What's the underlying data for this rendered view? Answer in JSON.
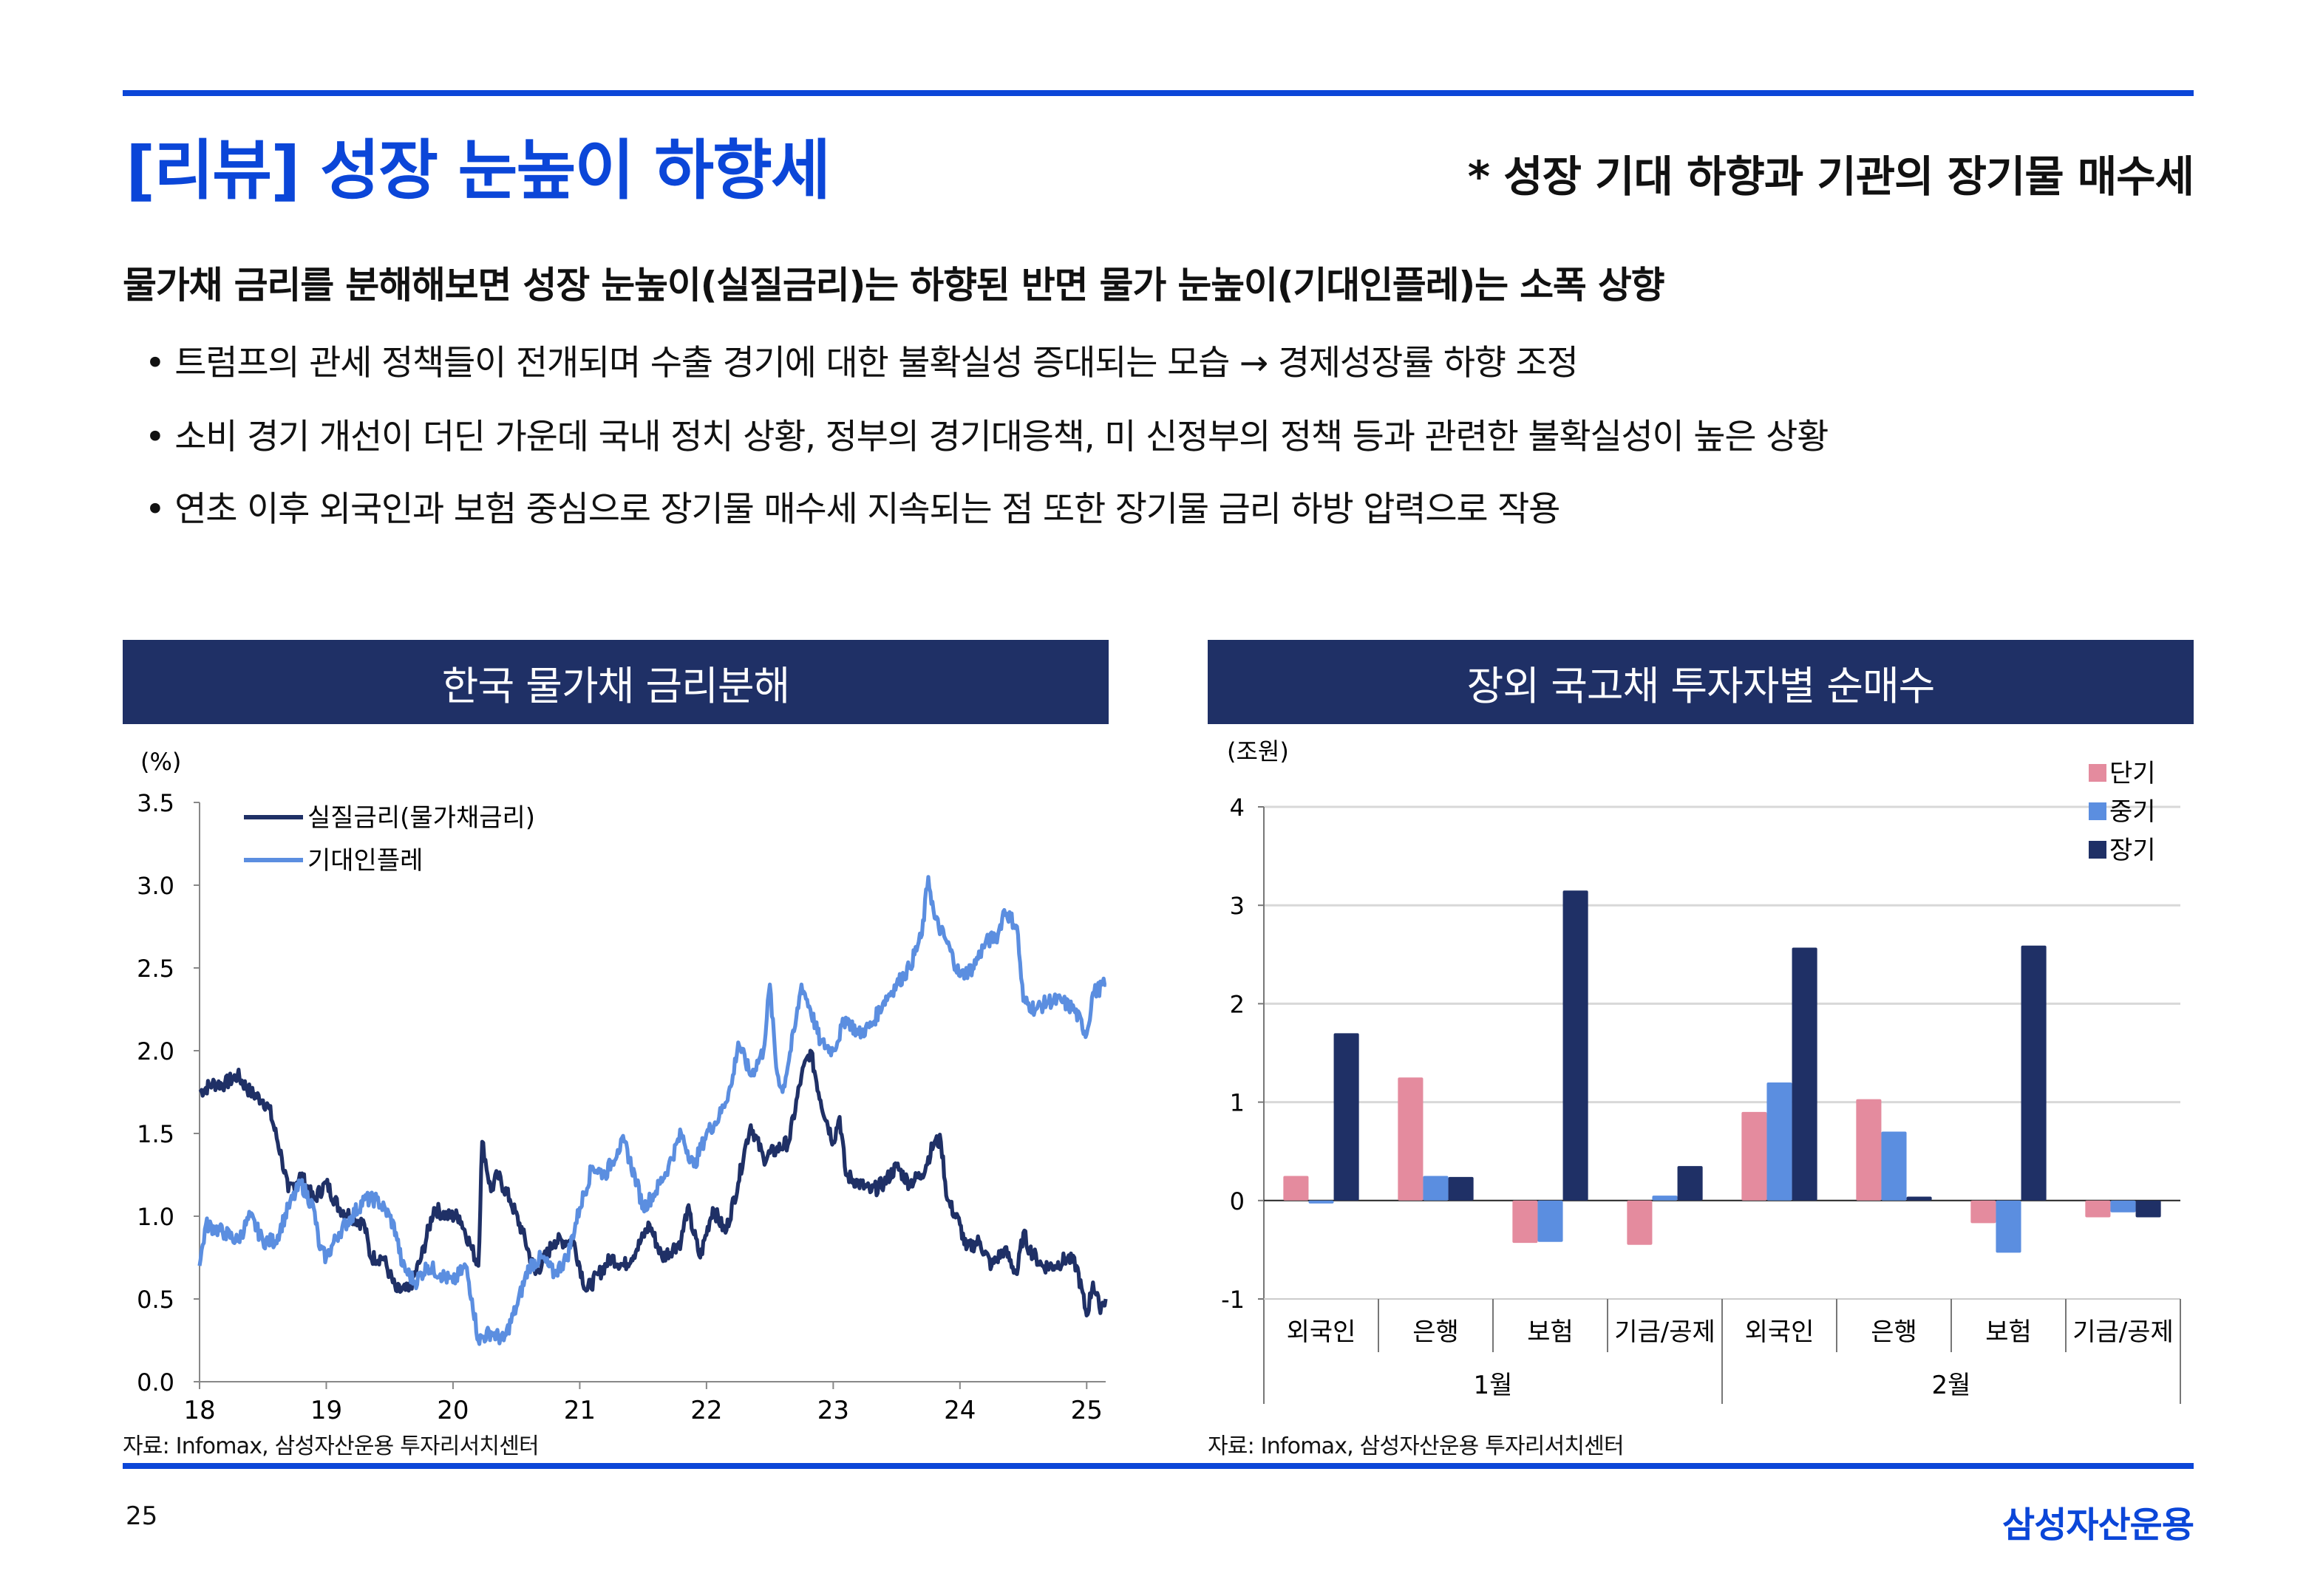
{
  "header": {
    "title": "[리뷰] 성장 눈높이 하향세",
    "subtitle": "* 성장 기대 하향과 기관의 장기물 매수세"
  },
  "body": {
    "headline": "물가채 금리를 분해해보면 성장 눈높이(실질금리)는 하향된 반면 물가 눈높이(기대인플레)는 소폭 상향",
    "bullets": [
      "• 트럼프의 관세 정책들이 전개되며 수출 경기에 대한 불확실성 증대되는 모습 → 경제성장률 하향 조정",
      "• 소비 경기 개선이 더딘 가운데 국내 정치 상황, 정부의 경기대응책, 미 신정부의 정책 등과 관련한 불확실성이 높은 상황",
      "• 연초 이후 외국인과 보험 중심으로 장기물 매수세 지속되는 점 또한 장기물 금리 하방 압력으로 작용"
    ]
  },
  "colors": {
    "brand": "#0b46d8",
    "header_bg": "#1f3066",
    "dark_series": "#1f3066",
    "light_series": "#5b8ee0",
    "short": "#e48b9e",
    "mid": "#5b8ee0",
    "long": "#1f3066"
  },
  "chart_data": [
    {
      "type": "line",
      "title": "한국 물가채 금리분해",
      "ylabel": "(%)",
      "ylim": [
        0,
        3.5
      ],
      "yticks": [
        "0.0",
        "0.5",
        "1.0",
        "1.5",
        "2.0",
        "2.5",
        "3.0",
        "3.5"
      ],
      "xticks": [
        "18",
        "19",
        "20",
        "21",
        "22",
        "23",
        "24",
        "25"
      ],
      "xlim": [
        2018,
        2025.15
      ],
      "legend": "top-left",
      "source": "자료: Infomax, 삼성자산운용 투자리서치센터",
      "series": [
        {
          "name": "실질금리(물가채금리)",
          "points": [
            [
              2018.0,
              1.75
            ],
            [
              2018.1,
              1.8
            ],
            [
              2018.2,
              1.8
            ],
            [
              2018.3,
              1.85
            ],
            [
              2018.4,
              1.75
            ],
            [
              2018.5,
              1.7
            ],
            [
              2018.55,
              1.65
            ],
            [
              2018.65,
              1.35
            ],
            [
              2018.7,
              1.15
            ],
            [
              2018.8,
              1.25
            ],
            [
              2018.9,
              1.1
            ],
            [
              2019.0,
              1.2
            ],
            [
              2019.1,
              1.05
            ],
            [
              2019.2,
              1.0
            ],
            [
              2019.3,
              0.95
            ],
            [
              2019.35,
              0.75
            ],
            [
              2019.45,
              0.75
            ],
            [
              2019.5,
              0.65
            ],
            [
              2019.55,
              0.55
            ],
            [
              2019.65,
              0.55
            ],
            [
              2019.75,
              0.75
            ],
            [
              2019.85,
              1.05
            ],
            [
              2019.95,
              1.0
            ],
            [
              2020.05,
              1.0
            ],
            [
              2020.15,
              0.8
            ],
            [
              2020.2,
              0.7
            ],
            [
              2020.23,
              1.45
            ],
            [
              2020.3,
              1.15
            ],
            [
              2020.35,
              1.25
            ],
            [
              2020.45,
              1.1
            ],
            [
              2020.55,
              0.9
            ],
            [
              2020.65,
              0.65
            ],
            [
              2020.8,
              0.85
            ],
            [
              2020.95,
              0.85
            ],
            [
              2021.05,
              0.55
            ],
            [
              2021.15,
              0.65
            ],
            [
              2021.25,
              0.75
            ],
            [
              2021.35,
              0.7
            ],
            [
              2021.45,
              0.8
            ],
            [
              2021.55,
              0.95
            ],
            [
              2021.65,
              0.75
            ],
            [
              2021.8,
              0.85
            ],
            [
              2021.85,
              1.05
            ],
            [
              2021.95,
              0.75
            ],
            [
              2022.05,
              1.05
            ],
            [
              2022.15,
              0.9
            ],
            [
              2022.25,
              1.2
            ],
            [
              2022.3,
              1.4
            ],
            [
              2022.35,
              1.55
            ],
            [
              2022.45,
              1.35
            ],
            [
              2022.55,
              1.4
            ],
            [
              2022.65,
              1.45
            ],
            [
              2022.75,
              1.85
            ],
            [
              2022.82,
              2.0
            ],
            [
              2022.9,
              1.7
            ],
            [
              2023.0,
              1.45
            ],
            [
              2023.05,
              1.6
            ],
            [
              2023.1,
              1.25
            ],
            [
              2023.2,
              1.2
            ],
            [
              2023.3,
              1.15
            ],
            [
              2023.4,
              1.2
            ],
            [
              2023.5,
              1.3
            ],
            [
              2023.6,
              1.2
            ],
            [
              2023.7,
              1.25
            ],
            [
              2023.8,
              1.45
            ],
            [
              2023.85,
              1.45
            ],
            [
              2023.9,
              1.1
            ],
            [
              2024.0,
              0.95
            ],
            [
              2024.05,
              0.8
            ],
            [
              2024.15,
              0.85
            ],
            [
              2024.25,
              0.7
            ],
            [
              2024.35,
              0.8
            ],
            [
              2024.45,
              0.65
            ],
            [
              2024.5,
              0.9
            ],
            [
              2024.55,
              0.8
            ],
            [
              2024.65,
              0.7
            ],
            [
              2024.75,
              0.7
            ],
            [
              2024.85,
              0.75
            ],
            [
              2024.92,
              0.7
            ],
            [
              2025.0,
              0.4
            ],
            [
              2025.05,
              0.6
            ],
            [
              2025.1,
              0.45
            ],
            [
              2025.15,
              0.5
            ]
          ]
        },
        {
          "name": "기대인플레",
          "points": [
            [
              2018.0,
              0.7
            ],
            [
              2018.05,
              0.95
            ],
            [
              2018.2,
              0.9
            ],
            [
              2018.3,
              0.85
            ],
            [
              2018.4,
              1.0
            ],
            [
              2018.5,
              0.85
            ],
            [
              2018.6,
              0.85
            ],
            [
              2018.7,
              1.05
            ],
            [
              2018.8,
              1.2
            ],
            [
              2018.9,
              1.05
            ],
            [
              2018.95,
              0.8
            ],
            [
              2019.0,
              0.75
            ],
            [
              2019.1,
              0.9
            ],
            [
              2019.2,
              1.0
            ],
            [
              2019.3,
              1.1
            ],
            [
              2019.4,
              1.1
            ],
            [
              2019.5,
              1.0
            ],
            [
              2019.55,
              0.9
            ],
            [
              2019.6,
              0.7
            ],
            [
              2019.7,
              0.6
            ],
            [
              2019.8,
              0.7
            ],
            [
              2019.9,
              0.65
            ],
            [
              2020.0,
              0.6
            ],
            [
              2020.1,
              0.7
            ],
            [
              2020.15,
              0.5
            ],
            [
              2020.2,
              0.25
            ],
            [
              2020.3,
              0.3
            ],
            [
              2020.4,
              0.25
            ],
            [
              2020.5,
              0.45
            ],
            [
              2020.6,
              0.7
            ],
            [
              2020.7,
              0.75
            ],
            [
              2020.8,
              0.65
            ],
            [
              2020.9,
              0.75
            ],
            [
              2021.0,
              1.05
            ],
            [
              2021.1,
              1.3
            ],
            [
              2021.2,
              1.25
            ],
            [
              2021.3,
              1.4
            ],
            [
              2021.35,
              1.45
            ],
            [
              2021.45,
              1.2
            ],
            [
              2021.5,
              1.05
            ],
            [
              2021.6,
              1.15
            ],
            [
              2021.7,
              1.3
            ],
            [
              2021.8,
              1.5
            ],
            [
              2021.9,
              1.3
            ],
            [
              2022.0,
              1.5
            ],
            [
              2022.1,
              1.6
            ],
            [
              2022.2,
              1.8
            ],
            [
              2022.25,
              2.05
            ],
            [
              2022.35,
              1.85
            ],
            [
              2022.45,
              2.0
            ],
            [
              2022.5,
              2.4
            ],
            [
              2022.55,
              1.9
            ],
            [
              2022.6,
              1.75
            ],
            [
              2022.7,
              2.15
            ],
            [
              2022.75,
              2.4
            ],
            [
              2022.82,
              2.25
            ],
            [
              2022.9,
              2.05
            ],
            [
              2023.0,
              2.0
            ],
            [
              2023.1,
              2.2
            ],
            [
              2023.2,
              2.1
            ],
            [
              2023.3,
              2.15
            ],
            [
              2023.4,
              2.3
            ],
            [
              2023.5,
              2.4
            ],
            [
              2023.6,
              2.5
            ],
            [
              2023.7,
              2.7
            ],
            [
              2023.75,
              3.05
            ],
            [
              2023.8,
              2.8
            ],
            [
              2023.9,
              2.65
            ],
            [
              2024.0,
              2.45
            ],
            [
              2024.1,
              2.5
            ],
            [
              2024.2,
              2.65
            ],
            [
              2024.3,
              2.7
            ],
            [
              2024.35,
              2.85
            ],
            [
              2024.45,
              2.75
            ],
            [
              2024.5,
              2.3
            ],
            [
              2024.6,
              2.25
            ],
            [
              2024.7,
              2.3
            ],
            [
              2024.8,
              2.3
            ],
            [
              2024.9,
              2.25
            ],
            [
              2025.0,
              2.1
            ],
            [
              2025.05,
              2.35
            ],
            [
              2025.15,
              2.4
            ]
          ]
        }
      ]
    },
    {
      "type": "bar",
      "title": "장외 국고채 투자자별 순매수",
      "ylabel": "(조원)",
      "ylim": [
        -1,
        4
      ],
      "yticks": [
        "-1",
        "0",
        "1",
        "2",
        "3",
        "4"
      ],
      "groups": [
        {
          "label": "1월",
          "categories": [
            "외국인",
            "은행",
            "보험",
            "기금/공제"
          ]
        },
        {
          "label": "2월",
          "categories": [
            "외국인",
            "은행",
            "보험",
            "기금/공제"
          ]
        }
      ],
      "legend": "top-right",
      "source": "자료: Infomax, 삼성자산운용 투자리서치센터",
      "series": [
        {
          "name": "단기",
          "values": [
            0.25,
            1.25,
            -0.43,
            -0.45,
            0.9,
            1.03,
            -0.23,
            -0.17
          ]
        },
        {
          "name": "중기",
          "values": [
            -0.03,
            0.25,
            -0.42,
            0.05,
            1.2,
            0.7,
            -0.53,
            -0.12
          ]
        },
        {
          "name": "장기",
          "values": [
            1.7,
            0.24,
            3.15,
            0.35,
            2.57,
            0.04,
            2.59,
            -0.17
          ]
        }
      ]
    }
  ],
  "footer": {
    "page": "25",
    "logo": "삼성자산운용"
  }
}
